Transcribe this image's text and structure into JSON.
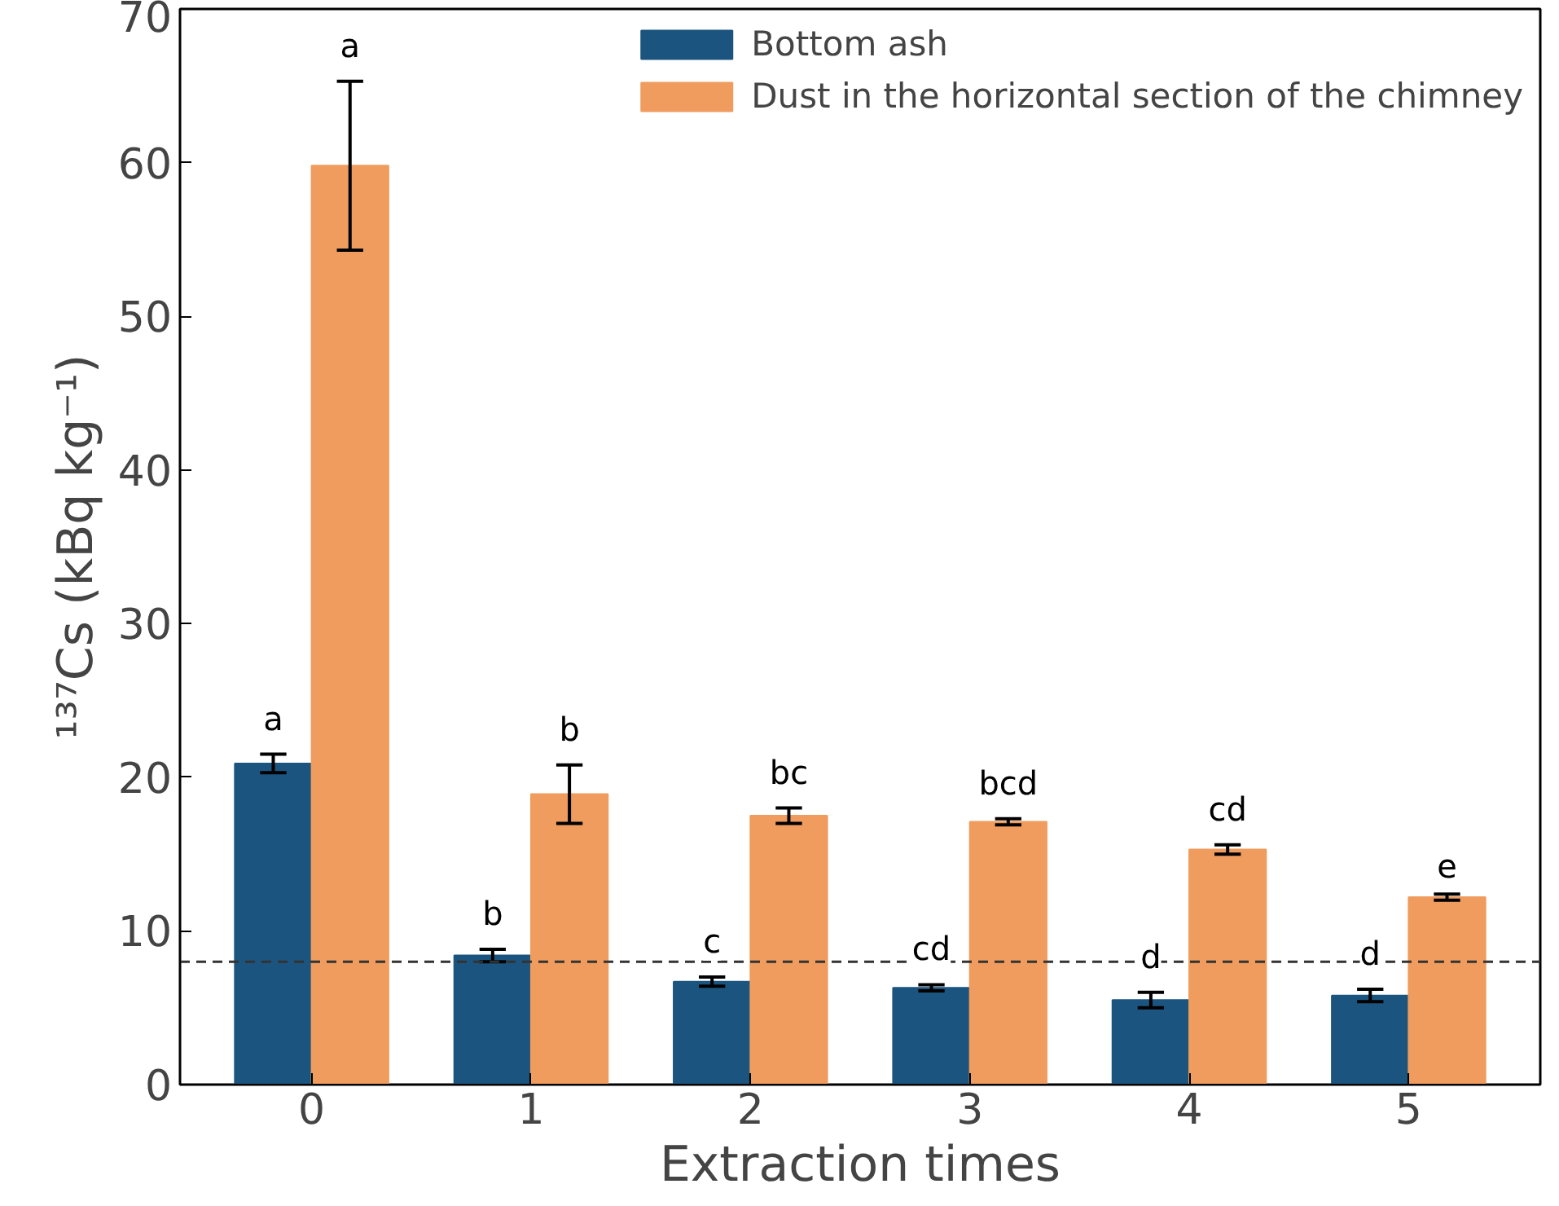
{
  "chart_data": {
    "type": "bar",
    "xlabel": "Extraction times",
    "ylabel": "¹³⁷Cs (kBq kg⁻¹)",
    "categories": [
      "0",
      "1",
      "2",
      "3",
      "4",
      "5"
    ],
    "series": [
      {
        "name": "Bottom ash",
        "color": "#1b557f",
        "values": [
          20.9,
          8.4,
          6.7,
          6.3,
          5.5,
          5.8
        ],
        "errors": [
          0.6,
          0.4,
          0.3,
          0.2,
          0.5,
          0.4
        ],
        "value_labels": [
          "a",
          "b",
          "c",
          "cd",
          "d",
          "d"
        ]
      },
      {
        "name": "Dust in the horizontal section of the chimney",
        "color": "#ef9c5e",
        "values": [
          59.8,
          18.9,
          17.5,
          17.1,
          15.3,
          12.2
        ],
        "errors": [
          5.5,
          1.9,
          0.5,
          0.2,
          0.3,
          0.2
        ],
        "value_labels": [
          "a",
          "b",
          "bc",
          "bcd",
          "cd",
          "e"
        ]
      }
    ],
    "ylim": [
      0,
      70
    ],
    "yticks": [
      0,
      10,
      20,
      30,
      40,
      50,
      60,
      70
    ],
    "grid": false,
    "legend": "top right",
    "ref_lines": [
      {
        "axis": "y",
        "value": 8,
        "color": "#333333",
        "line_style": "dashed"
      }
    ]
  }
}
